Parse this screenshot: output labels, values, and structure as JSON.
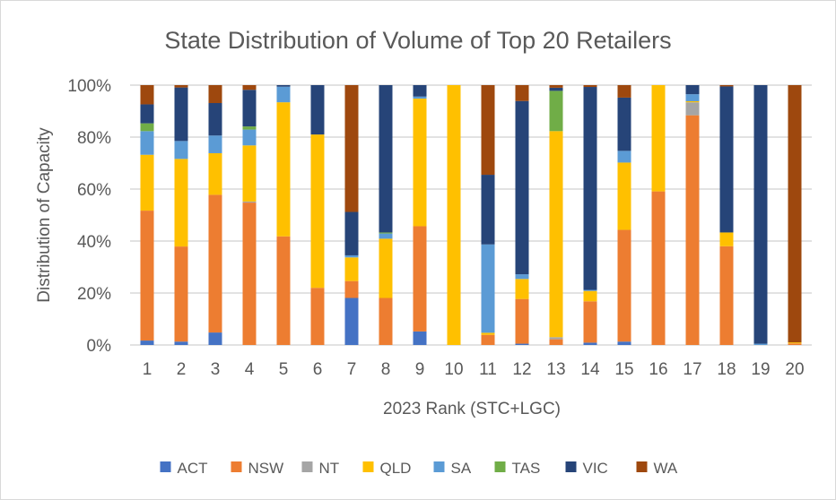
{
  "chart_data": {
    "type": "bar",
    "stacked": true,
    "title": "State Distribution of Volume of Top 20 Retailers",
    "xlabel": "2023 Rank (STC+LGC)",
    "ylabel": "Distribution of Capacity",
    "ylim": [
      0,
      100
    ],
    "yticks": [
      "0%",
      "20%",
      "40%",
      "60%",
      "80%",
      "100%"
    ],
    "grid": true,
    "legend_position": "bottom",
    "categories": [
      "1",
      "2",
      "3",
      "4",
      "5",
      "6",
      "7",
      "8",
      "9",
      "10",
      "11",
      "12",
      "13",
      "14",
      "15",
      "16",
      "17",
      "18",
      "19",
      "20"
    ],
    "series": [
      {
        "name": "ACT",
        "color": "#4472C4",
        "values": [
          1.7,
          1.3,
          4.8,
          0,
          0,
          0,
          18.1,
          0,
          5.2,
          0,
          0,
          0.5,
          0,
          0.9,
          1.3,
          0,
          0,
          0,
          0,
          0
        ]
      },
      {
        "name": "NSW",
        "color": "#ED7D31",
        "values": [
          50,
          36.6,
          53,
          54.8,
          41.8,
          22,
          6.5,
          18.1,
          40.5,
          0,
          3.9,
          17.2,
          2.2,
          15.9,
          43,
          59.1,
          88.4,
          38,
          0,
          0.6
        ]
      },
      {
        "name": "NT",
        "color": "#A5A5A5",
        "values": [
          0,
          0,
          0,
          0.4,
          0,
          0,
          0,
          0,
          0,
          0,
          0,
          0,
          0.8,
          0,
          0,
          0,
          5,
          0,
          0,
          0
        ]
      },
      {
        "name": "QLD",
        "color": "#FFC000",
        "values": [
          21.5,
          33.7,
          16,
          21.6,
          51.6,
          59,
          9.1,
          22.8,
          49.1,
          100,
          0.8,
          7.7,
          79.3,
          4,
          25.9,
          40.9,
          0.4,
          5.3,
          0,
          0.4
        ]
      },
      {
        "name": "SA",
        "color": "#5B9BD5",
        "values": [
          9.1,
          6.9,
          6.8,
          6.1,
          6,
          0,
          0.8,
          2,
          0.8,
          0,
          34,
          1.8,
          0,
          0.4,
          4.5,
          0,
          2.7,
          0,
          0.5,
          0
        ]
      },
      {
        "name": "TAS",
        "color": "#70AD47",
        "values": [
          3,
          0,
          0,
          1.2,
          0,
          0,
          0,
          0.4,
          0,
          0,
          0,
          0,
          15.5,
          0,
          0,
          0,
          0,
          0,
          0,
          0
        ]
      },
      {
        "name": "VIC",
        "color": "#264478",
        "values": [
          7.3,
          20.6,
          12.5,
          14.1,
          0.6,
          19,
          16.7,
          56.7,
          4.4,
          0,
          26.8,
          66.7,
          1.2,
          78.1,
          20.5,
          0,
          3.5,
          56.2,
          99.5,
          0
        ]
      },
      {
        "name": "WA",
        "color": "#9E480E",
        "values": [
          7.4,
          0.9,
          6.9,
          1.8,
          0,
          0,
          48.8,
          0,
          0,
          0,
          34.5,
          6.1,
          1,
          0.7,
          4.8,
          0,
          0,
          0.5,
          0,
          99
        ]
      }
    ]
  }
}
